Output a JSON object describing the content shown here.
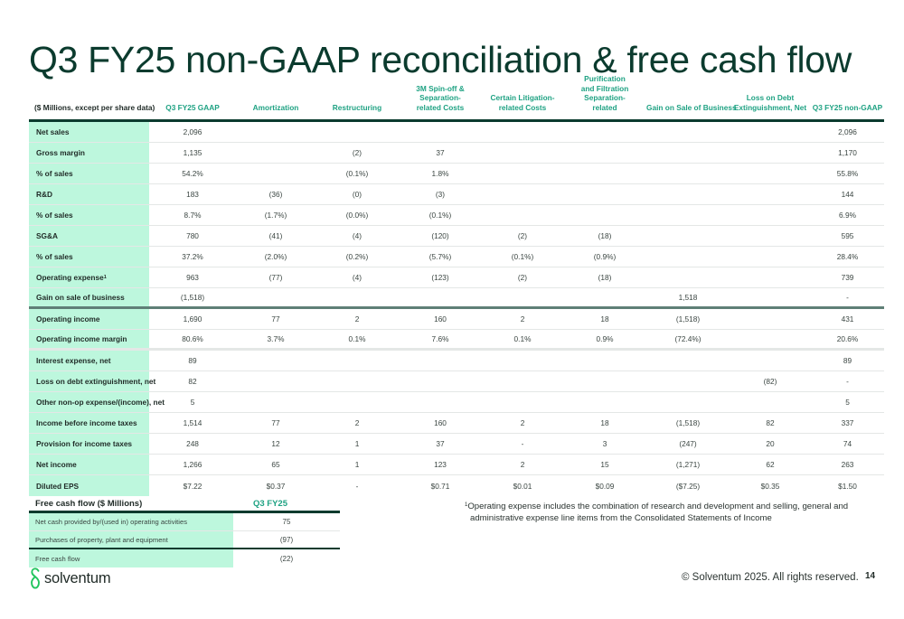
{
  "title": "Q3 FY25 non-GAAP reconciliation & free cash flow",
  "reconciliation": {
    "columns": [
      "($ Millions, except per share data)",
      "Q3 FY25 GAAP",
      "Amortization",
      "Restructuring",
      "3M Spin-off & Separation-\nrelated Costs",
      "Certain Litigation-\nrelated Costs",
      "Purification\nand Filtration Separation-\nrelated",
      "Gain on Sale of Business",
      "Loss on Debt\nExtinguishment, Net",
      "Q3 FY25 non-GAAP"
    ],
    "rows": [
      {
        "label": "Net sales",
        "values": [
          "2,096",
          "",
          "",
          "",
          "",
          "",
          "",
          "",
          "2,096"
        ]
      },
      {
        "label": "Gross margin",
        "values": [
          "1,135",
          "",
          "(2)",
          "37",
          "",
          "",
          "",
          "",
          "1,170"
        ]
      },
      {
        "label": "% of sales",
        "values": [
          "54.2%",
          "",
          "(0.1%)",
          "1.8%",
          "",
          "",
          "",
          "",
          "55.8%"
        ]
      },
      {
        "label": "R&D",
        "values": [
          "183",
          "(36)",
          "(0)",
          "(3)",
          "",
          "",
          "",
          "",
          "144"
        ]
      },
      {
        "label": "% of sales",
        "values": [
          "8.7%",
          "(1.7%)",
          "(0.0%)",
          "(0.1%)",
          "",
          "",
          "",
          "",
          "6.9%"
        ]
      },
      {
        "label": "SG&A",
        "values": [
          "780",
          "(41)",
          "(4)",
          "(120)",
          "(2)",
          "(18)",
          "",
          "",
          "595"
        ]
      },
      {
        "label": "% of sales",
        "values": [
          "37.2%",
          "(2.0%)",
          "(0.2%)",
          "(5.7%)",
          "(0.1%)",
          "(0.9%)",
          "",
          "",
          "28.4%"
        ]
      },
      {
        "label": "Operating expense",
        "sup": "1",
        "values": [
          "963",
          "(77)",
          "(4)",
          "(123)",
          "(2)",
          "(18)",
          "",
          "",
          "739"
        ]
      },
      {
        "label": "Gain on sale of business",
        "values": [
          "(1,518)",
          "",
          "",
          "",
          "",
          "",
          "1,518",
          "",
          "-"
        ]
      },
      {
        "label": "Operating income",
        "values": [
          "1,690",
          "77",
          "2",
          "160",
          "2",
          "18",
          "(1,518)",
          "",
          "431"
        ]
      },
      {
        "label": "Operating income margin",
        "values": [
          "80.6%",
          "3.7%",
          "0.1%",
          "7.6%",
          "0.1%",
          "0.9%",
          "(72.4%)",
          "",
          "20.6%"
        ]
      },
      {
        "label": "Interest expense, net",
        "values": [
          "89",
          "",
          "",
          "",
          "",
          "",
          "",
          "",
          "89"
        ]
      },
      {
        "label": "Loss on debt extinguishment, net",
        "values": [
          "82",
          "",
          "",
          "",
          "",
          "",
          "",
          "(82)",
          "-"
        ]
      },
      {
        "label": "Other non-op expense/(income), net",
        "values": [
          "5",
          "",
          "",
          "",
          "",
          "",
          "",
          "",
          "5"
        ]
      },
      {
        "label": "Income before income taxes",
        "values": [
          "1,514",
          "77",
          "2",
          "160",
          "2",
          "18",
          "(1,518)",
          "82",
          "337"
        ]
      },
      {
        "label": "Provision for income taxes",
        "values": [
          "248",
          "12",
          "1",
          "37",
          "-",
          "3",
          "(247)",
          "20",
          "74"
        ]
      },
      {
        "label": "Net income",
        "values": [
          "1,266",
          "65",
          "1",
          "123",
          "2",
          "15",
          "(1,271)",
          "62",
          "263"
        ]
      },
      {
        "label": "Diluted EPS",
        "values": [
          "$7.22",
          "$0.37",
          "-",
          "$0.71",
          "$0.01",
          "$0.09",
          "($7.25)",
          "$0.35",
          "$1.50"
        ]
      }
    ]
  },
  "free_cash_flow": {
    "header_label": "Free cash flow ($ Millions)",
    "header_period": "Q3 FY25",
    "rows": [
      {
        "label": "Net cash provided by/(used in) operating activities",
        "value": "75"
      },
      {
        "label": "Purchases of property, plant and equipment",
        "value": "(97)"
      },
      {
        "label": "Free cash flow",
        "value": "(22)"
      }
    ]
  },
  "footnote": {
    "marker": "1",
    "line1": "Operating expense includes the combination of research and development and selling, general and",
    "line2": "administrative expense line items from the Consolidated Statements of Income"
  },
  "footer": {
    "logo_text": "solventum",
    "copyright": "© Solventum 2025. All rights reserved.",
    "page_number": "14"
  },
  "colors": {
    "title": "#0b3b2e",
    "accent_header": "#1fa283",
    "label_bg": "#bdf7dd",
    "logo_green": "#22c55e"
  }
}
